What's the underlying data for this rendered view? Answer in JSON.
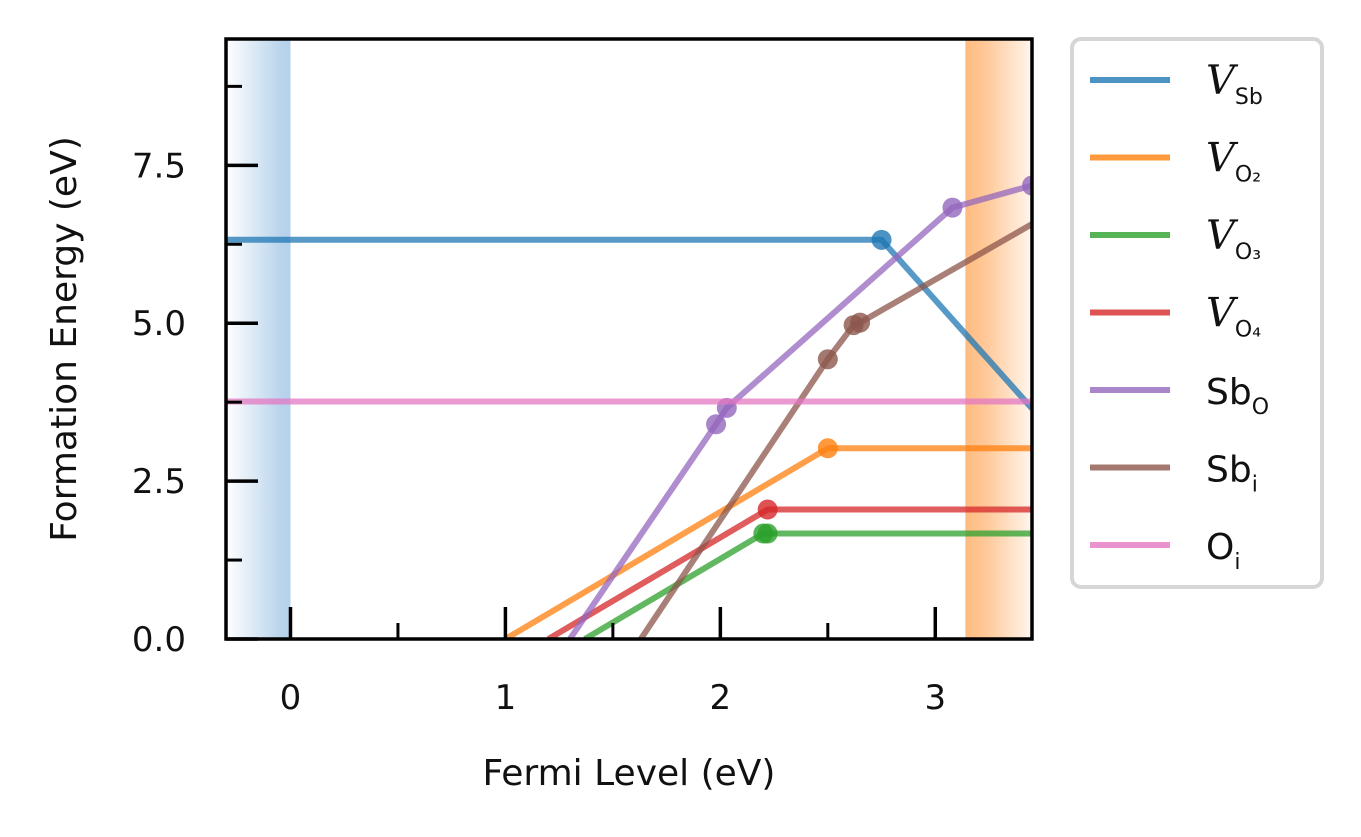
{
  "chart_data": {
    "type": "line",
    "xlabel": "Fermi Level (eV)",
    "ylabel": "Formation Energy (eV)",
    "xlim": [
      -0.3,
      3.45
    ],
    "ylim": [
      0.0,
      9.5
    ],
    "x_ticks": [
      0,
      1,
      2,
      3
    ],
    "x_tick_labels": [
      "0",
      "1",
      "2",
      "3"
    ],
    "x_minor_ticks": [
      0.5,
      1.5,
      2.5
    ],
    "y_ticks": [
      0.0,
      2.5,
      5.0,
      7.5
    ],
    "y_tick_labels": [
      "0.0",
      "2.5",
      "5.0",
      "7.5"
    ],
    "y_minor_ticks": [
      1.25,
      3.75,
      6.25,
      8.75
    ],
    "grid": false,
    "legend_position": "outside-right",
    "shaded_regions": [
      {
        "name": "valence-band",
        "x0": -0.3,
        "x1": 0.0,
        "color": "#9dc3e2"
      },
      {
        "name": "conduction-band",
        "x0": 3.14,
        "x1": 3.45,
        "color": "#ffa64d"
      }
    ],
    "series": [
      {
        "key": "v_sb",
        "label_main": "V",
        "label_sub": "Sb",
        "label_style": "italic",
        "color": "#1f77b4",
        "x": [
          -0.3,
          2.75,
          3.45
        ],
        "y": [
          6.32,
          6.32,
          3.65
        ],
        "markers": [
          [
            2.75,
            6.32
          ]
        ]
      },
      {
        "key": "v_o2",
        "label_main": "V",
        "label_sub": "O₂",
        "label_style": "italic",
        "color": "#ff7f0e",
        "x": [
          1.0,
          2.5,
          3.45
        ],
        "y": [
          0.0,
          3.02,
          3.02
        ],
        "markers": [
          [
            2.5,
            3.02
          ]
        ]
      },
      {
        "key": "v_o3",
        "label_main": "V",
        "label_sub": "O₃",
        "label_style": "italic",
        "color": "#2ca02c",
        "x": [
          1.37,
          2.2,
          3.45
        ],
        "y": [
          0.0,
          1.67,
          1.67
        ],
        "markers": [
          [
            2.2,
            1.67
          ],
          [
            2.22,
            1.67
          ]
        ]
      },
      {
        "key": "v_o4",
        "label_main": "V",
        "label_sub": "O₄",
        "label_style": "italic",
        "color": "#d62728",
        "x": [
          1.2,
          2.22,
          3.45
        ],
        "y": [
          0.0,
          2.05,
          2.05
        ],
        "markers": [
          [
            2.22,
            2.05
          ]
        ]
      },
      {
        "key": "sb_o",
        "label_main": "Sb",
        "label_sub": "O",
        "label_style": "normal",
        "color": "#9467bd",
        "x": [
          1.3,
          1.98,
          2.03,
          3.08,
          3.45
        ],
        "y": [
          0.0,
          3.4,
          3.66,
          6.83,
          7.18
        ],
        "markers": [
          [
            1.98,
            3.4
          ],
          [
            2.03,
            3.66
          ],
          [
            3.08,
            6.83
          ],
          [
            3.45,
            7.18
          ]
        ]
      },
      {
        "key": "sb_i",
        "label_main": "Sb",
        "label_sub": "i",
        "label_style": "normal",
        "color": "#8c564b",
        "x": [
          1.63,
          2.5,
          2.62,
          2.65,
          3.45
        ],
        "y": [
          0.0,
          4.43,
          4.97,
          5.01,
          6.57
        ],
        "markers": [
          [
            2.5,
            4.43
          ],
          [
            2.62,
            4.97
          ],
          [
            2.65,
            5.01
          ]
        ]
      },
      {
        "key": "o_i",
        "label_main": "O",
        "label_sub": "i",
        "label_style": "normal",
        "color": "#e377c2",
        "x": [
          -0.3,
          3.45
        ],
        "y": [
          3.76,
          3.76
        ],
        "markers": []
      }
    ]
  }
}
